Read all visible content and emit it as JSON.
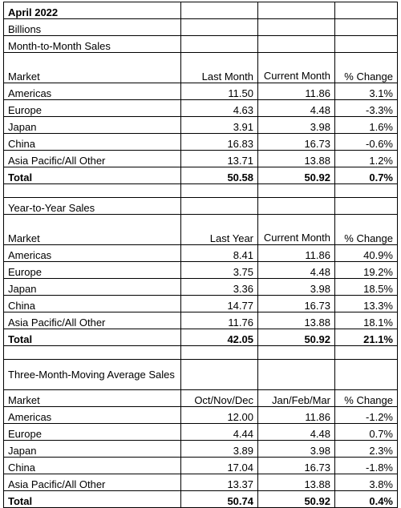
{
  "title": "April 2022",
  "units": "Billions",
  "sections": [
    {
      "heading": "Month-to-Month Sales",
      "columns": [
        "Market",
        "Last Month",
        "Current Month",
        "% Change"
      ],
      "rows": [
        [
          "Americas",
          "11.50",
          "11.86",
          "3.1%"
        ],
        [
          "Europe",
          "4.63",
          "4.48",
          "-3.3%"
        ],
        [
          "Japan",
          "3.91",
          "3.98",
          "1.6%"
        ],
        [
          "China",
          "16.83",
          "16.73",
          "-0.6%"
        ],
        [
          "Asia Pacific/All Other",
          "13.71",
          "13.88",
          "1.2%"
        ]
      ],
      "total": [
        "Total",
        "50.58",
        "50.92",
        "0.7%"
      ]
    },
    {
      "heading": "Year-to-Year Sales",
      "columns": [
        "Market",
        "Last Year",
        "Current Month",
        "% Change"
      ],
      "rows": [
        [
          "Americas",
          "8.41",
          "11.86",
          "40.9%"
        ],
        [
          "Europe",
          "3.75",
          "4.48",
          "19.2%"
        ],
        [
          "Japan",
          "3.36",
          "3.98",
          "18.5%"
        ],
        [
          "China",
          "14.77",
          "16.73",
          "13.3%"
        ],
        [
          "Asia Pacific/All Other",
          "11.76",
          "13.88",
          "18.1%"
        ]
      ],
      "total": [
        "Total",
        "42.05",
        "50.92",
        "21.1%"
      ]
    },
    {
      "heading": "Three-Month-Moving Average Sales",
      "columns": [
        "Market",
        "Oct/Nov/Dec",
        "Jan/Feb/Mar",
        "% Change"
      ],
      "rows": [
        [
          "Americas",
          "12.00",
          "11.86",
          "-1.2%"
        ],
        [
          "Europe",
          "4.44",
          "4.48",
          "0.7%"
        ],
        [
          "Japan",
          "3.89",
          "3.98",
          "2.3%"
        ],
        [
          "China",
          "17.04",
          "16.73",
          "-1.8%"
        ],
        [
          "Asia Pacific/All Other",
          "13.37",
          "13.88",
          "3.8%"
        ]
      ],
      "total": [
        "Total",
        "50.74",
        "50.92",
        "0.4%"
      ]
    }
  ]
}
